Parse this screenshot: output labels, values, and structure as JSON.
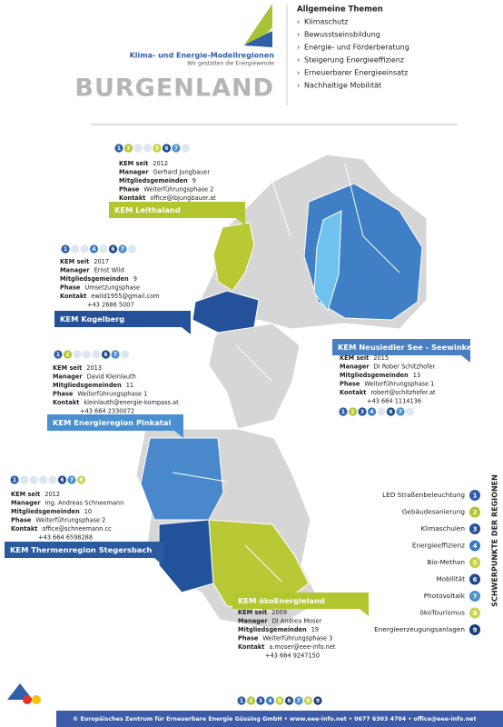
{
  "header": {
    "program": "Klima- und Energie-Modellregionen",
    "slogan": "Wir gestalten die Energiewende",
    "state": "BURGENLAND",
    "topics_title": "Allgemeine Themen",
    "topics": [
      "Klimaschutz",
      "Bewusstseinsbildung",
      "Energie- und Förderberatung",
      "Steigerung Energieeffizienz",
      "Erneuerbarer Energieeinsatz",
      "Nachhaltige Mobilität"
    ]
  },
  "regions": [
    {
      "name": "KEM Leithaland",
      "focus": [
        1,
        2,
        5,
        6,
        7
      ],
      "details": [
        {
          "label": "KEM seit",
          "value": "2012"
        },
        {
          "label": "Manager",
          "value": "Gerhard Jungbauer"
        },
        {
          "label": "Mitgliedsgemeinden",
          "value": "9"
        },
        {
          "label": "Phase",
          "value": "Weiterführungsphase 2"
        },
        {
          "label": "Kontakt",
          "value": "office@ibjungbauer.at"
        }
      ]
    },
    {
      "name": "KEM Kogelberg",
      "focus": [
        1,
        4,
        6,
        7
      ],
      "details": [
        {
          "label": "KEM seit",
          "value": "2017"
        },
        {
          "label": "Manager",
          "value": "Ernst Wild"
        },
        {
          "label": "Mitgliedsgemeinden",
          "value": "9"
        },
        {
          "label": "Phase",
          "value": "Umsetzungsphase"
        },
        {
          "label": "Kontakt",
          "value": "ewild1955@gmail.com"
        }
      ],
      "phone": "+43 2686 5007"
    },
    {
      "name": "KEM Neusiedler See - Seewinkel",
      "focus": [
        1,
        2,
        3,
        4,
        6,
        7
      ],
      "details": [
        {
          "label": "KEM seit",
          "value": "2015"
        },
        {
          "label": "Manager",
          "value": "DI Rober Schitzhofer"
        },
        {
          "label": "Mitgliedsgemeinden",
          "value": "13"
        },
        {
          "label": "Phase",
          "value": "Weiterführungsphase 1"
        },
        {
          "label": "Kontakt",
          "value": "robert@schitzhofer.at"
        }
      ],
      "phone": "+43 664 1114136"
    },
    {
      "name": "KEM Energieregion Pinkatal",
      "focus": [
        1,
        2,
        6,
        7
      ],
      "details": [
        {
          "label": "KEM seit",
          "value": "2013"
        },
        {
          "label": "Manager",
          "value": "David Kleinlauth"
        },
        {
          "label": "Mitgliedsgemeinden",
          "value": "11"
        },
        {
          "label": "Phase",
          "value": "Weiterführungsphase 1"
        },
        {
          "label": "Kontakt",
          "value": "kleinlauth@energie-kompass.at"
        }
      ],
      "phone": "+43 664 2330072"
    },
    {
      "name": "KEM Thermenregion Stegersbach",
      "focus": [
        1,
        6,
        7,
        8
      ],
      "details": [
        {
          "label": "KEM seit",
          "value": "2012"
        },
        {
          "label": "Manager",
          "value": "Ing. Andreas Schneemann"
        },
        {
          "label": "Mitgliedsgemeinden",
          "value": "10"
        },
        {
          "label": "Phase",
          "value": "Weiterführungsphase 2"
        },
        {
          "label": "Kontakt",
          "value": "office@schneemann.cc"
        }
      ],
      "phone": "+43 664 6598288"
    },
    {
      "name": "KEM ökoEnergieland",
      "focus": [
        1,
        2,
        3,
        4,
        5,
        6,
        7,
        8,
        9
      ],
      "details": [
        {
          "label": "KEM seit",
          "value": "2009"
        },
        {
          "label": "Manager",
          "value": "DI Andrea Moser"
        },
        {
          "label": "Mitgliedsgemeinden",
          "value": "19"
        },
        {
          "label": "Phase",
          "value": "Weiterführungsphase 3"
        },
        {
          "label": "Kontakt",
          "value": "a.moser@eee-info.net"
        }
      ],
      "phone": "+43 664 9247150"
    }
  ],
  "legend": {
    "title": "SCHWERPUNKTE DER REGIONEN",
    "items": [
      {
        "number": 1,
        "label": "LED Straßenbeleuchtung",
        "color": "#2e5ea8"
      },
      {
        "number": 2,
        "label": "Gebäudesanierung",
        "color": "#b3c52f"
      },
      {
        "number": 3,
        "label": "Klimaschulen",
        "color": "#24519a"
      },
      {
        "number": 4,
        "label": "Energieeffizienz",
        "color": "#3a7cc4"
      },
      {
        "number": 5,
        "label": "Bio-Methan",
        "color": "#c2d13c"
      },
      {
        "number": 6,
        "label": "Mobilität",
        "color": "#1e4888"
      },
      {
        "number": 7,
        "label": "Photovoltaik",
        "color": "#4a90cd"
      },
      {
        "number": 8,
        "label": "ökoTourismus",
        "color": "#c8d24e"
      },
      {
        "number": 9,
        "label": "Energieerzeugungsanlagen",
        "color": "#1c3d78"
      }
    ]
  },
  "footer": "© Europäisches Zentrum für Erneuerbare Energie Güssing GmbH • www.eee-info.net • 0677 6303 4704 • office@eee-info.net"
}
